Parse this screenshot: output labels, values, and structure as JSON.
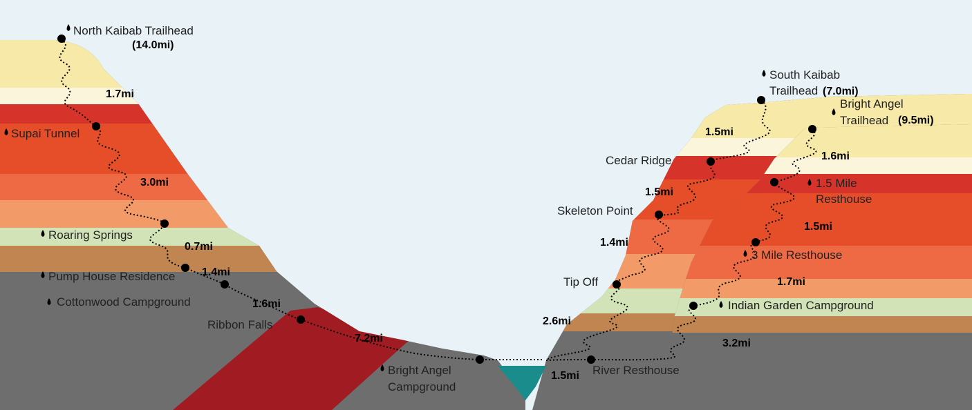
{
  "colors": {
    "sky": "#E8F2F7",
    "rock_gray": "#6E6E6E",
    "layer_cream": "#F7E9A8",
    "layer_white": "#FBF5DC",
    "layer_red": "#D6342A",
    "layer_orange_red": "#E64E2A",
    "layer_salmon": "#EE6A45",
    "layer_peach": "#F29A68",
    "layer_pale_green": "#D3E3B8",
    "layer_tan": "#C08550",
    "layer_maroon": "#A01C22",
    "river": "#1A8C8C",
    "trail": "#000000"
  },
  "labels": {
    "north_kaibab": "North Kaibab Trailhead",
    "north_kaibab_dist": "(14.0mi)",
    "supai_tunnel": "Supai Tunnel",
    "roaring_springs": "Roaring Springs",
    "pump_house": "Pump House Residence",
    "cottonwood": "Cottonwood Campground",
    "ribbon_falls": "Ribbon Falls",
    "bright_angel_cg_1": "Bright Angel",
    "bright_angel_cg_2": "Campground",
    "south_kaibab_1": "South Kaibab",
    "south_kaibab_2": "Trailhead",
    "south_kaibab_dist": "(7.0mi)",
    "bright_angel_th_1": "Bright Angel",
    "bright_angel_th_2": "Trailhead",
    "bright_angel_th_dist": "(9.5mi)",
    "cedar_ridge": "Cedar Ridge",
    "skeleton_point": "Skeleton Point",
    "tip_off": "Tip Off",
    "mile_15_1": "1.5 Mile",
    "mile_15_2": "Resthouse",
    "mile_3": "3 Mile Resthouse",
    "indian_garden": "Indian Garden Campground",
    "river_resthouse": "River Resthouse"
  },
  "distances": {
    "nk_1": "1.7mi",
    "nk_2": "3.0mi",
    "nk_3": "0.7mi",
    "nk_4": "1.4mi",
    "nk_5": "1.6mi",
    "nk_6": "7.2mi",
    "sk_1": "1.5mi",
    "sk_2": "1.5mi",
    "sk_3": "1.4mi",
    "sk_4": "2.6mi",
    "ba_1": "1.6mi",
    "ba_2": "1.5mi",
    "ba_3": "1.7mi",
    "ba_4": "3.2mi",
    "ba_5": "1.5mi"
  }
}
